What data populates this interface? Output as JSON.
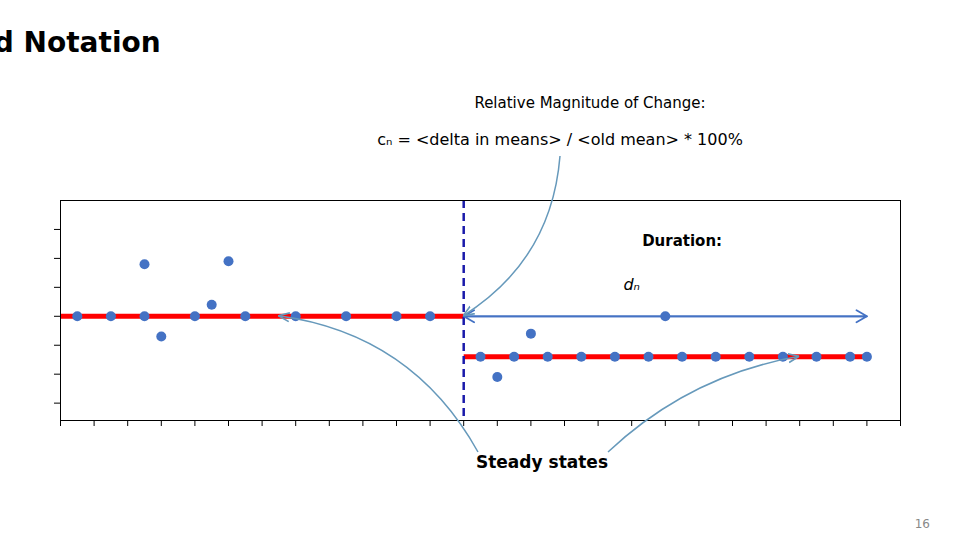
{
  "chart_data": {
    "type": "scatter",
    "title": "Used Notation",
    "xlim": [
      0,
      25
    ],
    "ylim": [
      -1.8,
      2.0
    ],
    "xticks": [
      0,
      1,
      2,
      3,
      4,
      5,
      6,
      7,
      8,
      9,
      10,
      11,
      12,
      13,
      14,
      15,
      16,
      17,
      18,
      19,
      20,
      21,
      22,
      23,
      24,
      25
    ],
    "yticks": [
      -1.5,
      -1.0,
      -0.5,
      0.0,
      0.5,
      1.0,
      1.5
    ],
    "tick_labels": false,
    "grid": false,
    "series": [
      {
        "type": "scatter",
        "color": "#4472c4",
        "x": [
          0.5,
          1.5,
          2.5,
          4.0,
          5.5,
          7.0,
          8.5,
          10.0,
          11.0,
          3.0,
          2.5,
          5.0,
          4.5,
          12.5,
          13.5,
          14.5,
          15.5,
          16.5,
          17.5,
          18.5,
          19.5,
          20.5,
          21.5,
          22.5,
          23.5,
          24.0,
          14.0,
          18.0,
          13.0
        ],
        "values": [
          0.0,
          0.0,
          0.0,
          0.0,
          0.0,
          0.0,
          0.0,
          0.0,
          0.0,
          -0.35,
          0.9,
          0.95,
          0.2,
          -0.7,
          -0.7,
          -0.7,
          -0.7,
          -0.7,
          -0.7,
          -0.7,
          -0.7,
          -0.7,
          -0.7,
          -0.7,
          -0.7,
          -0.7,
          -0.3,
          0.0,
          -1.05
        ]
      },
      {
        "type": "line",
        "color": "#ff0000",
        "x": [
          0.0,
          12.0
        ],
        "values": [
          0.0,
          0.0
        ]
      },
      {
        "type": "line",
        "color": "#ff0000",
        "x": [
          12.0,
          24.0
        ],
        "values": [
          -0.7,
          -0.7
        ]
      }
    ],
    "vlines": [
      {
        "x": 12.0,
        "color": "#1a1aaa",
        "line_style": "dashed"
      }
    ],
    "arrows": [
      {
        "x_start": 12.0,
        "x_end": 24.0,
        "y": 0.0,
        "color": "#4472c4"
      }
    ],
    "annotations": [
      {
        "text": "Relative Magnitude of Change:"
      },
      {
        "text": "cₙ = <delta in means> / <old mean> * 100%",
        "color": "#6699bb",
        "arrow_to": [
          [
            12.0,
            0.0
          ]
        ]
      },
      {
        "text": "Duration:",
        "x": 18.5,
        "y": 1.3
      },
      {
        "text": "dₙ",
        "x": 17.0,
        "y": 0.55
      },
      {
        "text": "Steady states",
        "color": "#6699bb",
        "arrow_to": [
          [
            6.5,
            0.0
          ],
          [
            22.0,
            -0.7
          ]
        ]
      },
      {
        "text": "16"
      }
    ]
  }
}
